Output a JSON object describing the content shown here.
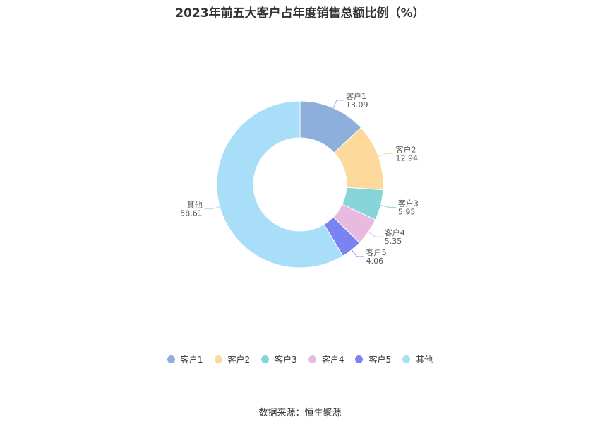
{
  "chart_data": {
    "type": "pie",
    "title": "2023年前五大客户占年度销售总额比例（%）",
    "categories": [
      "客户1",
      "客户2",
      "客户3",
      "客户4",
      "客户5",
      "其他"
    ],
    "values": [
      13.09,
      12.94,
      5.95,
      5.35,
      4.06,
      58.61
    ],
    "value_labels": [
      "13.09",
      "12.94",
      "5.95",
      "5.35",
      "4.06",
      "58.61"
    ],
    "colors": [
      "#8eaedb",
      "#fdd99b",
      "#86d6d9",
      "#e8bade",
      "#7b83f2",
      "#a8def8"
    ],
    "donut": true,
    "legend_position": "bottom"
  },
  "source_text": "数据来源：恒生聚源"
}
